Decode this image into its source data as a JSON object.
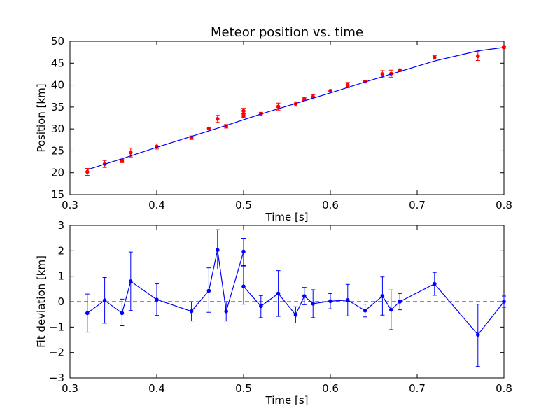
{
  "chart_data": [
    {
      "type": "line",
      "title": "Meteor position vs. time",
      "xlabel": "Time [s]",
      "ylabel": "Position [km]",
      "xlim": [
        0.3,
        0.8
      ],
      "ylim": [
        15,
        50
      ],
      "xticks": [
        "0.3",
        "0.4",
        "0.5",
        "0.6",
        "0.7",
        "0.8"
      ],
      "yticks": [
        "15",
        "20",
        "25",
        "30",
        "35",
        "40",
        "45",
        "50"
      ],
      "grid": false,
      "series": [
        {
          "kind": "errorbar",
          "color": "#ff0000",
          "x": [
            0.32,
            0.34,
            0.36,
            0.37,
            0.4,
            0.44,
            0.46,
            0.47,
            0.48,
            0.5,
            0.5,
            0.52,
            0.54,
            0.56,
            0.57,
            0.58,
            0.6,
            0.62,
            0.64,
            0.66,
            0.67,
            0.68,
            0.72,
            0.77,
            0.8
          ],
          "y": [
            20.2,
            22.0,
            22.7,
            24.6,
            26.0,
            28.0,
            30.1,
            32.3,
            30.6,
            33.0,
            34.1,
            33.4,
            35.1,
            35.7,
            36.8,
            37.3,
            38.7,
            40.0,
            40.8,
            42.5,
            42.6,
            43.4,
            46.3,
            46.6,
            48.6
          ],
          "yerr": [
            0.8,
            0.8,
            0.4,
            1.0,
            0.6,
            0.4,
            0.8,
            0.8,
            0.4,
            0.4,
            0.6,
            0.4,
            0.8,
            0.5,
            0.3,
            0.5,
            0.2,
            0.6,
            0.3,
            0.8,
            0.8,
            0.3,
            0.4,
            1.0,
            0.2
          ]
        },
        {
          "kind": "line",
          "color": "#0000ff",
          "x": [
            0.32,
            0.36,
            0.4,
            0.44,
            0.48,
            0.52,
            0.56,
            0.6,
            0.64,
            0.68,
            0.72,
            0.77,
            0.8
          ],
          "y": [
            20.7,
            23.2,
            25.8,
            28.3,
            30.8,
            33.4,
            35.8,
            38.2,
            40.7,
            43.1,
            45.5,
            47.8,
            48.6
          ]
        }
      ]
    },
    {
      "type": "line",
      "title": "",
      "xlabel": "Time [s]",
      "ylabel": "Fit deviation [km]",
      "xlim": [
        0.3,
        0.8
      ],
      "ylim": [
        -3,
        3
      ],
      "xticks": [
        "0.3",
        "0.4",
        "0.5",
        "0.6",
        "0.7",
        "0.8"
      ],
      "yticks": [
        "−3",
        "−2",
        "−1",
        "0",
        "1",
        "2",
        "3"
      ],
      "grid": false,
      "reference_line": {
        "y": 0,
        "color": "#ff0000",
        "style": "dashed"
      },
      "series": [
        {
          "kind": "errorbar-line",
          "color": "#0000ff",
          "x": [
            0.32,
            0.34,
            0.36,
            0.37,
            0.4,
            0.44,
            0.46,
            0.47,
            0.48,
            0.5,
            0.5,
            0.52,
            0.54,
            0.56,
            0.57,
            0.58,
            0.6,
            0.62,
            0.64,
            0.66,
            0.67,
            0.68,
            0.72,
            0.77,
            0.8
          ],
          "y": [
            -0.45,
            0.05,
            -0.45,
            0.8,
            0.08,
            -0.38,
            0.43,
            2.03,
            -0.38,
            1.97,
            0.6,
            -0.18,
            0.32,
            -0.52,
            0.22,
            -0.08,
            0.02,
            0.06,
            -0.35,
            0.22,
            -0.32,
            0.0,
            0.7,
            -1.3,
            0.0
          ]
        }
      ],
      "upper_err": [
        0.75,
        0.9,
        0.55,
        1.15,
        0.62,
        0.38,
        0.9,
        0.8,
        0.38,
        0.52,
        0.8,
        0.42,
        0.9,
        0.32,
        0.34,
        0.55,
        0.3,
        0.62,
        0.25,
        0.75,
        0.78,
        0.32,
        0.45,
        1.2,
        0.22
      ],
      "lower_err": [
        0.75,
        0.9,
        0.5,
        1.15,
        0.62,
        0.38,
        0.85,
        0.75,
        0.38,
        0.55,
        0.7,
        0.45,
        0.9,
        0.32,
        0.34,
        0.55,
        0.3,
        0.62,
        0.25,
        0.75,
        0.78,
        0.32,
        0.45,
        1.25,
        0.22
      ]
    }
  ]
}
